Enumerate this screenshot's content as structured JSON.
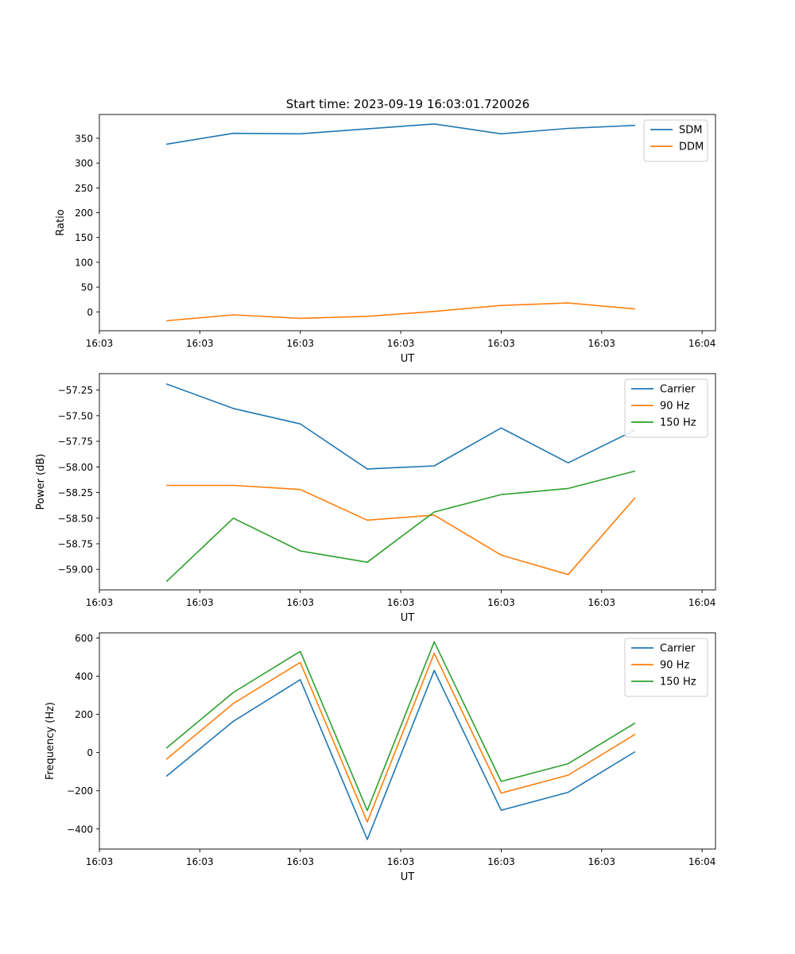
{
  "figure": {
    "title": "Start time: 2023-09-19 16:03:01.720026"
  },
  "chart_data": [
    {
      "type": "line",
      "title": "Start time: 2023-09-19 16:03:01.720026",
      "xlabel": "UT",
      "ylabel": "Ratio",
      "x": [
        0.5,
        1,
        1.5,
        2,
        2.5,
        3,
        3.5,
        4
      ],
      "xlim": [
        0,
        4.6
      ],
      "xticks": [
        0,
        0.75,
        1.5,
        2.25,
        3,
        3.75,
        4.5
      ],
      "xtick_labels": [
        "16:03",
        "16:03",
        "16:03",
        "16:03",
        "16:03",
        "16:03",
        "16:04"
      ],
      "ylim": [
        -38,
        398
      ],
      "yticks": [
        0,
        50,
        100,
        150,
        200,
        250,
        300,
        350
      ],
      "ytick_labels": [
        "0",
        "50",
        "100",
        "150",
        "200",
        "250",
        "300",
        "350"
      ],
      "legend_position": "top-right",
      "series": [
        {
          "name": "SDM",
          "color": "#1f77b4",
          "values": [
            338,
            360,
            359,
            369,
            379,
            359,
            370,
            376
          ]
        },
        {
          "name": "DDM",
          "color": "#ff7f0e",
          "values": [
            -18,
            -6,
            -13,
            -9,
            1,
            13,
            18,
            6
          ]
        }
      ]
    },
    {
      "type": "line",
      "xlabel": "UT",
      "ylabel": "Power (dB)",
      "x": [
        0.5,
        1,
        1.5,
        2,
        2.5,
        3,
        3.5,
        4
      ],
      "xlim": [
        0,
        4.6
      ],
      "xticks": [
        0,
        0.75,
        1.5,
        2.25,
        3,
        3.75,
        4.5
      ],
      "xtick_labels": [
        "16:03",
        "16:03",
        "16:03",
        "16:03",
        "16:03",
        "16:03",
        "16:04"
      ],
      "ylim": [
        -59.2,
        -57.09
      ],
      "yticks": [
        -59.0,
        -58.75,
        -58.5,
        -58.25,
        -58.0,
        -57.75,
        -57.5,
        -57.25
      ],
      "ytick_labels": [
        "−59.00",
        "−58.75",
        "−58.50",
        "−58.25",
        "−58.00",
        "−57.75",
        "−57.50",
        "−57.25"
      ],
      "legend_position": "top-right",
      "series": [
        {
          "name": "Carrier",
          "color": "#1f77b4",
          "values": [
            -57.19,
            -57.43,
            -57.58,
            -58.02,
            -57.99,
            -57.62,
            -57.96,
            -57.64
          ]
        },
        {
          "name": "90 Hz",
          "color": "#ff7f0e",
          "values": [
            -58.18,
            -58.18,
            -58.22,
            -58.52,
            -58.47,
            -58.86,
            -59.05,
            -58.3
          ]
        },
        {
          "name": "150 Hz",
          "color": "#2ca02c",
          "values": [
            -59.12,
            -58.5,
            -58.82,
            -58.93,
            -58.44,
            -58.27,
            -58.21,
            -58.04
          ]
        }
      ]
    },
    {
      "type": "line",
      "xlabel": "UT",
      "ylabel": "Frequency (Hz)",
      "x": [
        0.5,
        1,
        1.5,
        2,
        2.5,
        3,
        3.5,
        4
      ],
      "xlim": [
        0,
        4.6
      ],
      "xticks": [
        0,
        0.75,
        1.5,
        2.25,
        3,
        3.75,
        4.5
      ],
      "xtick_labels": [
        "16:03",
        "16:03",
        "16:03",
        "16:03",
        "16:03",
        "16:03",
        "16:04"
      ],
      "ylim": [
        -505,
        627
      ],
      "yticks": [
        -400,
        -200,
        0,
        200,
        400,
        600
      ],
      "ytick_labels": [
        "−400",
        "−200",
        "0",
        "200",
        "400",
        "600"
      ],
      "legend_position": "top-right",
      "series": [
        {
          "name": "Carrier",
          "color": "#1f77b4",
          "values": [
            -124,
            164,
            382,
            -455,
            430,
            -302,
            -208,
            5
          ]
        },
        {
          "name": "90 Hz",
          "color": "#ff7f0e",
          "values": [
            -35,
            257,
            472,
            -363,
            520,
            -212,
            -118,
            96
          ]
        },
        {
          "name": "150 Hz",
          "color": "#2ca02c",
          "values": [
            23,
            315,
            530,
            -303,
            580,
            -151,
            -58,
            155
          ]
        }
      ]
    }
  ]
}
